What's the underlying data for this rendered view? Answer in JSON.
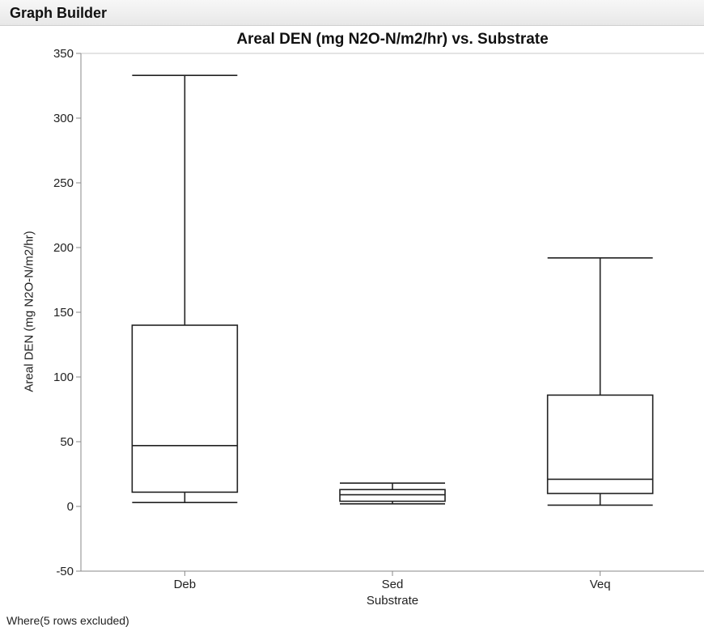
{
  "header": {
    "title": "Graph Builder"
  },
  "footer": {
    "note": "Where(5 rows excluded)"
  },
  "chart_data": {
    "type": "boxplot",
    "title": "Areal DEN (mg N2O-N/m2/hr) vs. Substrate",
    "xlabel": "Substrate",
    "ylabel": "Areal DEN (mg N2O-N/m2/hr)",
    "ylim": [
      -50,
      350
    ],
    "yticks": [
      -50,
      0,
      50,
      100,
      150,
      200,
      250,
      300,
      350
    ],
    "grid": false,
    "legend": "none",
    "colors": {
      "line": "#222222",
      "axis": "#888888"
    },
    "categories": [
      "Deb",
      "Sed",
      "Veq"
    ],
    "boxes": [
      {
        "category": "Deb",
        "min": 3,
        "q1": 11,
        "median": 47,
        "q3": 140,
        "max": 333
      },
      {
        "category": "Sed",
        "min": 2,
        "q1": 4,
        "median": 9,
        "q3": 13,
        "max": 18
      },
      {
        "category": "Veq",
        "min": 1,
        "q1": 10,
        "median": 21,
        "q3": 86,
        "max": 192
      }
    ]
  }
}
